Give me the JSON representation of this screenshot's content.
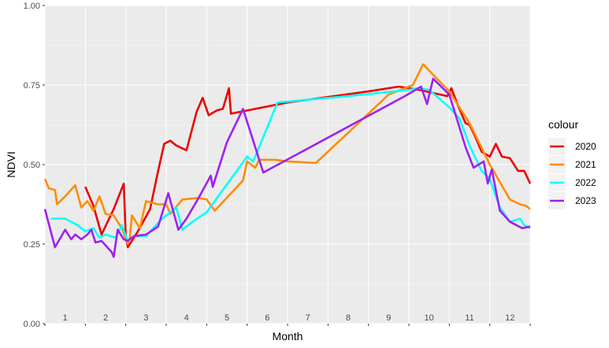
{
  "chart_data": {
    "type": "line",
    "title": "",
    "xlabel": "Month",
    "ylabel": "NDVI",
    "ylim": [
      0,
      1
    ],
    "xlim": [
      0.5,
      12.5
    ],
    "grid": true,
    "y_ticks": [
      "0.00",
      "0.25",
      "0.50",
      "0.75",
      "1.00"
    ],
    "x_ticks": [
      "1",
      "2",
      "3",
      "4",
      "5",
      "6",
      "7",
      "8",
      "9",
      "10",
      "11",
      "12"
    ],
    "legend": {
      "title": "colour",
      "placement": "right"
    },
    "series": [
      {
        "name": "2020",
        "color": "#ee0000",
        "points": [
          [
            1.5,
            0.43
          ],
          [
            1.7,
            0.37
          ],
          [
            1.9,
            0.28
          ],
          [
            2.2,
            0.36
          ],
          [
            2.45,
            0.44
          ],
          [
            2.5,
            0.27
          ],
          [
            2.55,
            0.24
          ],
          [
            2.8,
            0.29
          ],
          [
            3.1,
            0.36
          ],
          [
            3.3,
            0.48
          ],
          [
            3.45,
            0.565
          ],
          [
            3.6,
            0.575
          ],
          [
            3.75,
            0.56
          ],
          [
            4.0,
            0.545
          ],
          [
            4.25,
            0.665
          ],
          [
            4.4,
            0.71
          ],
          [
            4.55,
            0.655
          ],
          [
            4.75,
            0.67
          ],
          [
            4.9,
            0.675
          ],
          [
            5.05,
            0.74
          ],
          [
            5.1,
            0.66
          ],
          [
            6.5,
            0.695
          ],
          [
            8.5,
            0.73
          ],
          [
            9.25,
            0.745
          ],
          [
            9.75,
            0.735
          ],
          [
            10.45,
            0.715
          ],
          [
            10.55,
            0.74
          ],
          [
            10.7,
            0.69
          ],
          [
            10.9,
            0.63
          ],
          [
            11.0,
            0.625
          ],
          [
            11.15,
            0.585
          ],
          [
            11.3,
            0.54
          ],
          [
            11.5,
            0.525
          ],
          [
            11.65,
            0.565
          ],
          [
            11.8,
            0.525
          ],
          [
            12.0,
            0.52
          ],
          [
            12.2,
            0.48
          ],
          [
            12.35,
            0.48
          ],
          [
            12.5,
            0.44
          ]
        ]
      },
      {
        "name": "2021",
        "color": "#ff8c00",
        "points": [
          [
            0.5,
            0.455
          ],
          [
            0.6,
            0.425
          ],
          [
            0.75,
            0.42
          ],
          [
            0.8,
            0.375
          ],
          [
            1.0,
            0.4
          ],
          [
            1.25,
            0.435
          ],
          [
            1.4,
            0.365
          ],
          [
            1.55,
            0.385
          ],
          [
            1.7,
            0.355
          ],
          [
            1.85,
            0.4
          ],
          [
            2.0,
            0.345
          ],
          [
            2.2,
            0.34
          ],
          [
            2.4,
            0.3
          ],
          [
            2.55,
            0.25
          ],
          [
            2.6,
            0.27
          ],
          [
            2.65,
            0.34
          ],
          [
            2.85,
            0.3
          ],
          [
            3.0,
            0.385
          ],
          [
            3.3,
            0.375
          ],
          [
            3.5,
            0.375
          ],
          [
            3.6,
            0.345
          ],
          [
            3.9,
            0.39
          ],
          [
            4.3,
            0.395
          ],
          [
            4.5,
            0.39
          ],
          [
            4.7,
            0.355
          ],
          [
            5.4,
            0.45
          ],
          [
            5.5,
            0.51
          ],
          [
            5.7,
            0.49
          ],
          [
            5.8,
            0.515
          ],
          [
            6.2,
            0.515
          ],
          [
            6.5,
            0.51
          ],
          [
            7.2,
            0.505
          ],
          [
            8.0,
            0.6
          ],
          [
            9.0,
            0.72
          ],
          [
            9.6,
            0.75
          ],
          [
            9.85,
            0.815
          ],
          [
            10.5,
            0.73
          ],
          [
            11.0,
            0.63
          ],
          [
            11.5,
            0.5
          ],
          [
            12.0,
            0.39
          ],
          [
            12.25,
            0.375
          ],
          [
            12.4,
            0.37
          ],
          [
            12.5,
            0.36
          ]
        ]
      },
      {
        "name": "2022",
        "color": "#00ffff",
        "points": [
          [
            0.65,
            0.33
          ],
          [
            1.0,
            0.33
          ],
          [
            1.3,
            0.31
          ],
          [
            1.5,
            0.29
          ],
          [
            1.7,
            0.3
          ],
          [
            1.85,
            0.27
          ],
          [
            2.0,
            0.28
          ],
          [
            2.25,
            0.27
          ],
          [
            2.4,
            0.31
          ],
          [
            2.55,
            0.26
          ],
          [
            2.7,
            0.275
          ],
          [
            3.0,
            0.275
          ],
          [
            3.4,
            0.33
          ],
          [
            3.75,
            0.365
          ],
          [
            3.9,
            0.295
          ],
          [
            4.15,
            0.32
          ],
          [
            4.5,
            0.35
          ],
          [
            5.5,
            0.525
          ],
          [
            5.65,
            0.51
          ],
          [
            6.25,
            0.695
          ],
          [
            8.0,
            0.715
          ],
          [
            9.5,
            0.735
          ],
          [
            9.75,
            0.74
          ],
          [
            10.0,
            0.735
          ],
          [
            10.5,
            0.68
          ],
          [
            10.75,
            0.645
          ],
          [
            11.0,
            0.56
          ],
          [
            11.3,
            0.48
          ],
          [
            11.5,
            0.455
          ],
          [
            11.75,
            0.365
          ],
          [
            12.0,
            0.32
          ],
          [
            12.25,
            0.33
          ],
          [
            12.35,
            0.31
          ],
          [
            12.5,
            0.3
          ]
        ]
      },
      {
        "name": "2023",
        "color": "#a020f0",
        "points": [
          [
            0.5,
            0.36
          ],
          [
            0.75,
            0.24
          ],
          [
            1.0,
            0.295
          ],
          [
            1.15,
            0.265
          ],
          [
            1.25,
            0.28
          ],
          [
            1.4,
            0.265
          ],
          [
            1.55,
            0.28
          ],
          [
            1.65,
            0.295
          ],
          [
            1.75,
            0.255
          ],
          [
            1.9,
            0.26
          ],
          [
            2.15,
            0.225
          ],
          [
            2.2,
            0.21
          ],
          [
            2.3,
            0.295
          ],
          [
            2.45,
            0.265
          ],
          [
            2.55,
            0.26
          ],
          [
            2.7,
            0.275
          ],
          [
            3.0,
            0.28
          ],
          [
            3.3,
            0.305
          ],
          [
            3.55,
            0.41
          ],
          [
            3.8,
            0.295
          ],
          [
            4.0,
            0.33
          ],
          [
            4.3,
            0.395
          ],
          [
            4.6,
            0.465
          ],
          [
            4.65,
            0.43
          ],
          [
            5.0,
            0.57
          ],
          [
            5.4,
            0.675
          ],
          [
            5.9,
            0.475
          ],
          [
            9.4,
            0.715
          ],
          [
            9.8,
            0.745
          ],
          [
            9.95,
            0.69
          ],
          [
            10.1,
            0.77
          ],
          [
            10.5,
            0.72
          ],
          [
            10.9,
            0.555
          ],
          [
            11.1,
            0.49
          ],
          [
            11.35,
            0.51
          ],
          [
            11.45,
            0.44
          ],
          [
            11.55,
            0.485
          ],
          [
            11.75,
            0.355
          ],
          [
            12.0,
            0.32
          ],
          [
            12.3,
            0.3
          ],
          [
            12.5,
            0.305
          ]
        ]
      }
    ]
  }
}
